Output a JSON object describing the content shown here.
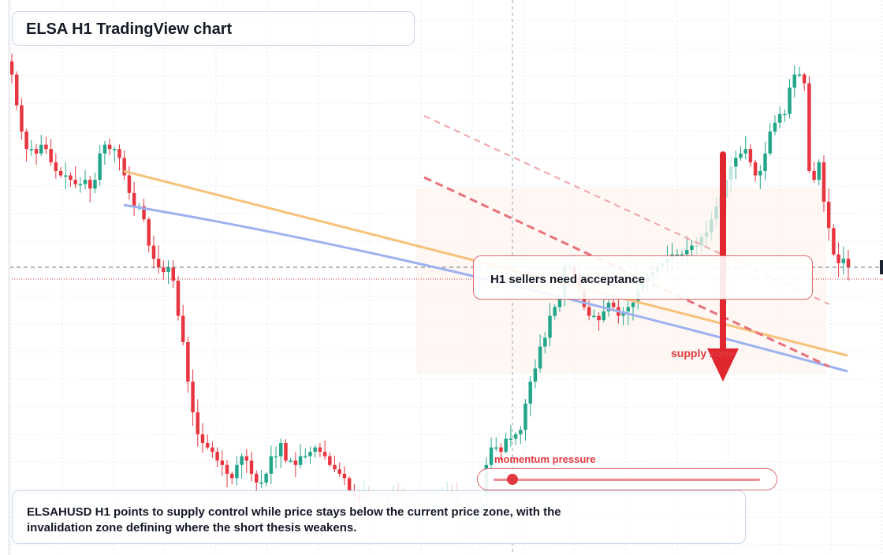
{
  "header": {
    "title": "ELSA H1 TradingView chart"
  },
  "callout": {
    "text": "H1 sellers need acceptance"
  },
  "zone_label": {
    "text": "supply zone"
  },
  "momentum": {
    "label": "momentum pressure",
    "level": 0.07
  },
  "caption": {
    "text": "ELSAHUSD H1 points to supply control while price stays below the current price zone, with the invalidation zone defining where the short thesis weakens."
  },
  "colors": {
    "bull": "#22a68a",
    "bear": "#e8353f",
    "orange_line": "#f7c27a",
    "blue_line": "#9db1f0",
    "dashed_line": "#e8707a",
    "arrow": "#e0262e",
    "zone_fill": "#fdf3ee"
  },
  "chart_data": {
    "type": "candlestick",
    "timeframe": "H1",
    "symbol": "ELSAHUSD",
    "y_range": [
      0.0,
      1.0
    ],
    "current_price": 0.589,
    "closes": [
      0.97,
      0.9,
      0.84,
      0.8,
      0.8,
      0.79,
      0.81,
      0.8,
      0.77,
      0.75,
      0.74,
      0.74,
      0.73,
      0.72,
      0.72,
      0.73,
      0.71,
      0.73,
      0.79,
      0.81,
      0.8,
      0.8,
      0.78,
      0.74,
      0.7,
      0.67,
      0.67,
      0.64,
      0.58,
      0.55,
      0.53,
      0.52,
      0.53,
      0.5,
      0.42,
      0.36,
      0.27,
      0.2,
      0.15,
      0.13,
      0.12,
      0.11,
      0.09,
      0.08,
      0.06,
      0.05,
      0.08,
      0.1,
      0.09,
      0.06,
      0.04,
      0.04,
      0.06,
      0.1,
      0.1,
      0.13,
      0.09,
      0.09,
      0.08,
      0.1,
      0.1,
      0.11,
      0.12,
      0.11,
      0.1,
      0.08,
      0.07,
      0.06,
      0.05,
      0.02,
      0.01,
      0.0,
      0.02,
      0.0,
      0.0,
      0.01,
      -0.01,
      0.01,
      0.02,
      0.01,
      -0.0,
      -0.01,
      -0.02,
      -0.02,
      -0.02,
      -0.02,
      -0.01,
      0.0,
      0.01,
      0.02,
      0.01,
      -0.03,
      -0.05,
      -0.06,
      -0.05,
      -0.03,
      0.01,
      0.08,
      0.12,
      0.12,
      0.11,
      0.14,
      0.14,
      0.15,
      0.16,
      0.22,
      0.27,
      0.3,
      0.35,
      0.37,
      0.42,
      0.44,
      0.46,
      0.53,
      0.53,
      0.51,
      0.48,
      0.44,
      0.42,
      0.42,
      0.41,
      0.43,
      0.45,
      0.44,
      0.42,
      0.43,
      0.44,
      0.45,
      0.48,
      0.5,
      0.51,
      0.52,
      0.53,
      0.54,
      0.55,
      0.56,
      0.56,
      0.56,
      0.57,
      0.58,
      0.58,
      0.6,
      0.61,
      0.64,
      0.67,
      0.69,
      0.73,
      0.76,
      0.78,
      0.79,
      0.8,
      0.77,
      0.74,
      0.75,
      0.79,
      0.84,
      0.86,
      0.88,
      0.88,
      0.94,
      0.97,
      0.97,
      0.95,
      0.75,
      0.73,
      0.77,
      0.68,
      0.62,
      0.56,
      0.54,
      0.55,
      0.53
    ]
  }
}
